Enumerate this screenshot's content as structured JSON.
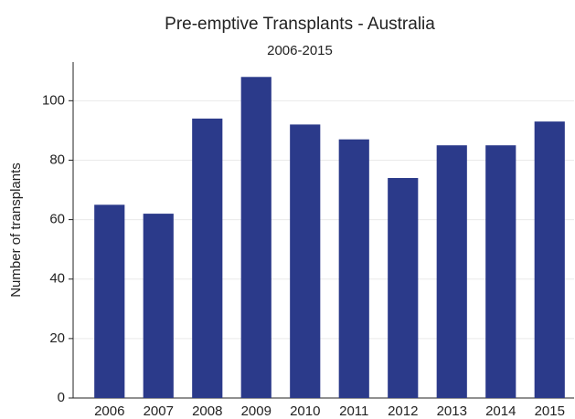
{
  "chart_data": {
    "type": "bar",
    "title": "Pre-emptive Transplants - Australia",
    "subtitle": "2006-2015",
    "y_label": "Number of transplants",
    "categories": [
      "2006",
      "2007",
      "2008",
      "2009",
      "2010",
      "2011",
      "2012",
      "2013",
      "2014",
      "2015"
    ],
    "values": [
      65,
      62,
      94,
      108,
      92,
      87,
      74,
      85,
      85,
      93
    ],
    "color": "#2b3a8a",
    "ylim": [
      0,
      113
    ],
    "yticks": [
      0,
      20,
      40,
      60,
      80,
      100
    ],
    "grid": true
  }
}
